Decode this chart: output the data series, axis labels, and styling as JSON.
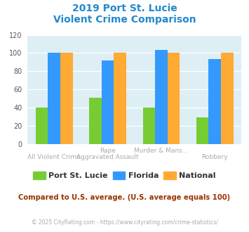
{
  "title_line1": "2019 Port St. Lucie",
  "title_line2": "Violent Crime Comparison",
  "top_labels": [
    "",
    "Rape",
    "Murder & Mans...",
    ""
  ],
  "bottom_labels": [
    "All Violent Crime",
    "Aggravated Assault",
    "",
    "Robbery"
  ],
  "port_values": [
    40,
    51,
    40,
    29
  ],
  "florida_values": [
    100,
    92,
    103,
    93
  ],
  "national_values": [
    100,
    100,
    100,
    100
  ],
  "port_color": "#77cc33",
  "florida_color": "#3399ff",
  "national_color": "#ffaa33",
  "ylim": [
    0,
    120
  ],
  "yticks": [
    0,
    20,
    40,
    60,
    80,
    100,
    120
  ],
  "plot_bg": "#ddeef5",
  "title_color": "#2288cc",
  "footer_text": "Compared to U.S. average. (U.S. average equals 100)",
  "footer_color": "#993300",
  "copyright_text": "© 2025 CityRating.com - https://www.cityrating.com/crime-statistics/",
  "copyright_color": "#aaaaaa",
  "legend_labels": [
    "Port St. Lucie",
    "Florida",
    "National"
  ]
}
